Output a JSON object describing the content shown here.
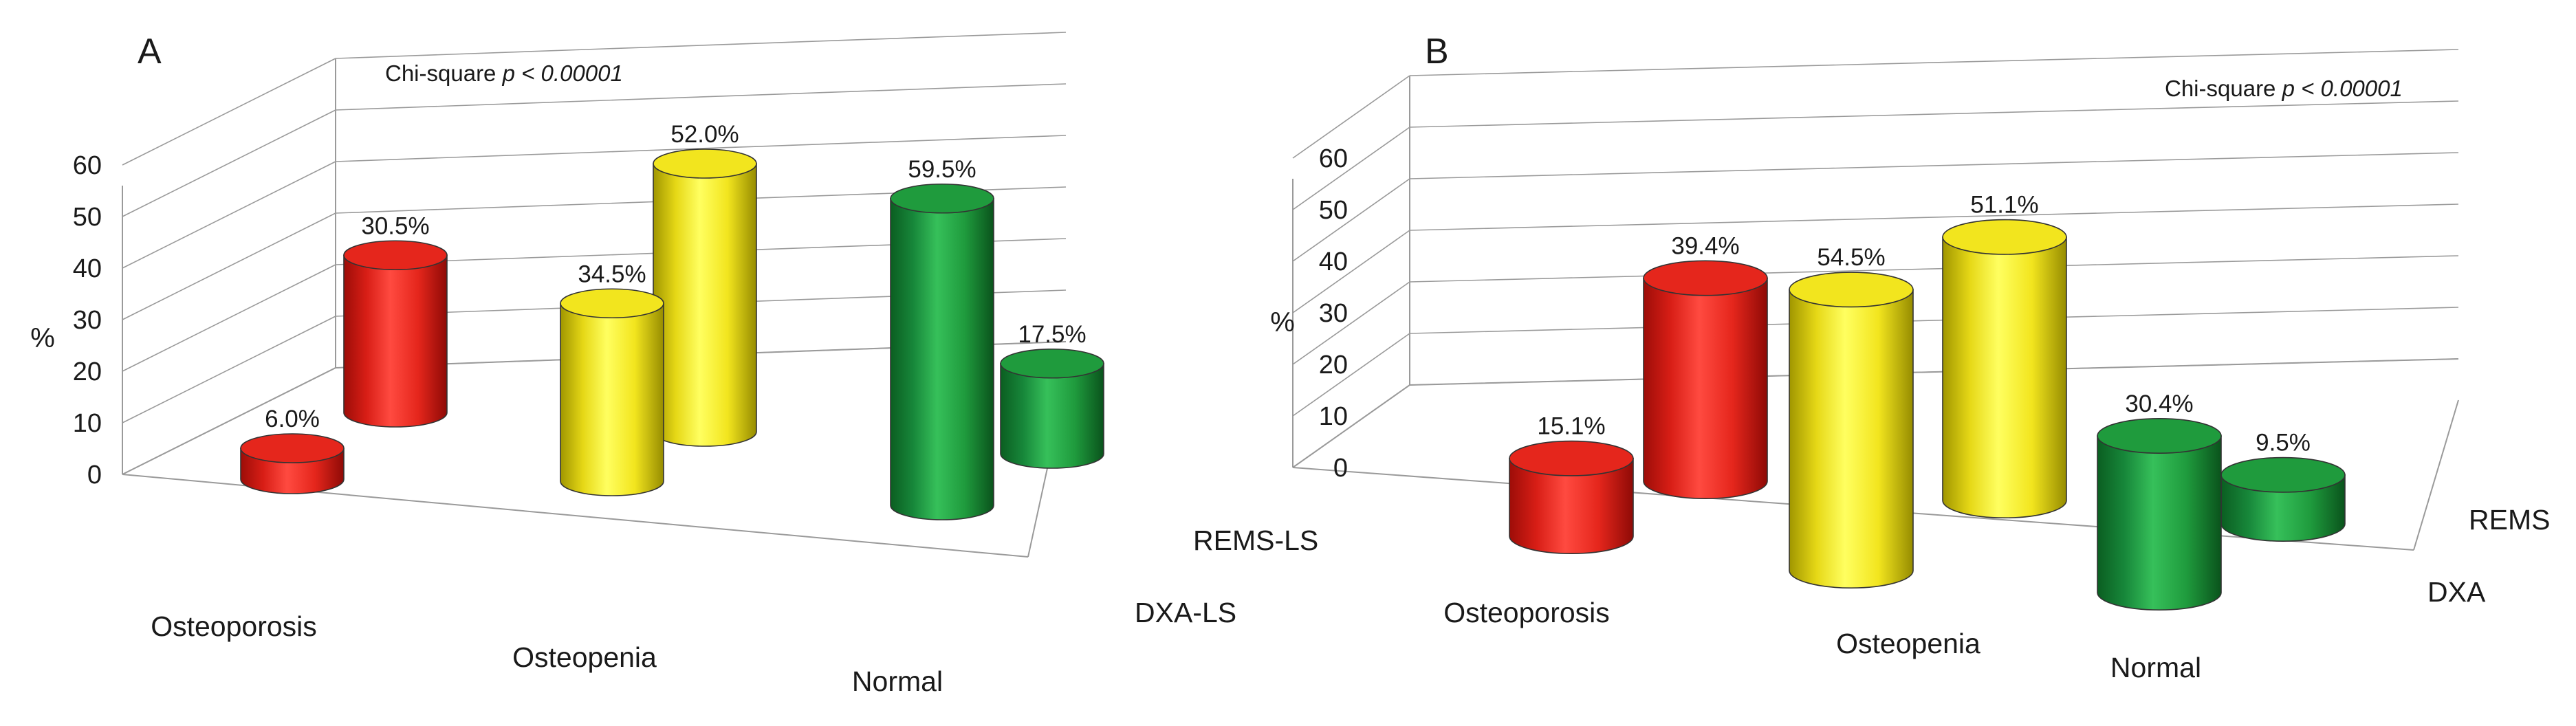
{
  "colors": {
    "Osteoporosis": "#e5261c",
    "Osteopenia": "#f2e51e",
    "Normal": "#1f9b3d",
    "grid": "#9a9a9a"
  },
  "chart_data": [
    {
      "panel": "A",
      "type": "bar",
      "title": "A",
      "subtitle_prefix": "Chi-square ",
      "subtitle_p": "p",
      "subtitle_value": " < 0.00001",
      "ylabel": "%",
      "ylim": [
        0,
        60
      ],
      "yticks": [
        "0",
        "10",
        "20",
        "30",
        "40",
        "50",
        "60"
      ],
      "categories": [
        "Osteoporosis",
        "Osteopenia",
        "Normal"
      ],
      "series": [
        {
          "name": "DXA-LS",
          "values": [
            6.0,
            34.5,
            59.5
          ],
          "labels": [
            "6.0%",
            "34.5%",
            "59.5%"
          ]
        },
        {
          "name": "REMS-LS",
          "values": [
            30.5,
            52.0,
            17.5
          ],
          "labels": [
            "30.5%",
            "52.0%",
            "17.5%"
          ]
        }
      ]
    },
    {
      "panel": "B",
      "type": "bar",
      "title": "B",
      "subtitle_prefix": "Chi-square ",
      "subtitle_p": "p",
      "subtitle_value": " < 0.00001",
      "ylabel": "%",
      "ylim": [
        0,
        60
      ],
      "yticks": [
        "0",
        "10",
        "20",
        "30",
        "40",
        "50",
        "60"
      ],
      "categories": [
        "Osteoporosis",
        "Osteopenia",
        "Normal"
      ],
      "series": [
        {
          "name": "DXA",
          "values": [
            15.1,
            54.5,
            30.4
          ],
          "labels": [
            "15.1%",
            "54.5%",
            "30.4%"
          ]
        },
        {
          "name": "REMS",
          "values": [
            39.4,
            51.1,
            9.5
          ],
          "labels": [
            "39.4%",
            "51.1%",
            "9.5%"
          ]
        }
      ]
    }
  ]
}
